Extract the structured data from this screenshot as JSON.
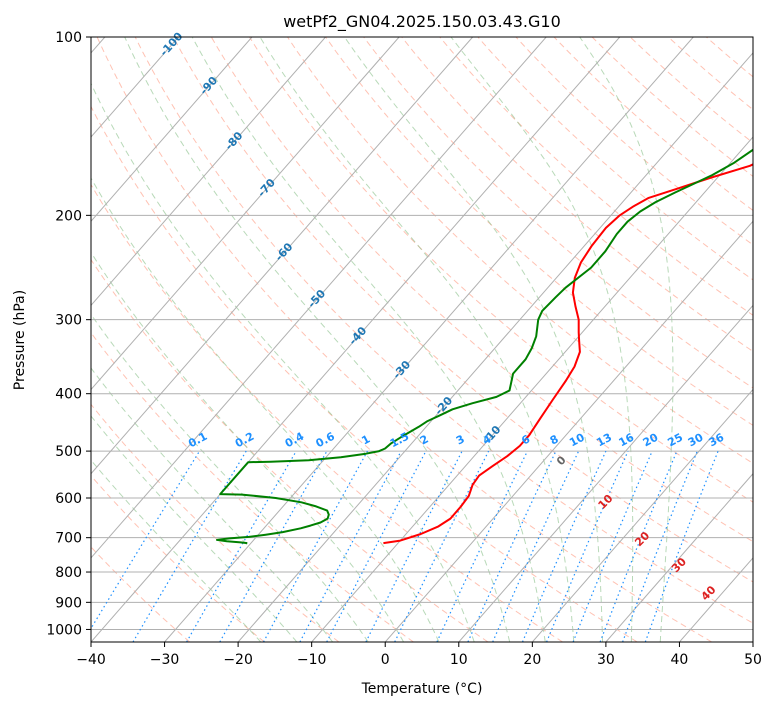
{
  "chart_data": {
    "type": "line",
    "title": "wetPf2_GN04.2025.150.03.43.G10",
    "xlabel": "Temperature (°C)",
    "ylabel": "Pressure (hPa)",
    "xlim": [
      -40,
      50
    ],
    "ylim": [
      1050,
      100
    ],
    "y_scale": "log",
    "grid": true,
    "x_ticks": [
      -40,
      -30,
      -20,
      -10,
      0,
      10,
      20,
      30,
      40,
      50
    ],
    "y_ticks": [
      100,
      200,
      300,
      400,
      500,
      600,
      700,
      800,
      900,
      1000
    ],
    "colors": {
      "temperature": "#ff0000",
      "dewpoint": "#008000",
      "isotherm_label": "#1f77b4",
      "mixing_ratio": "#1e90ff",
      "dry_adiabat": "#ff9980",
      "moist_adiabat": "#88c088",
      "grid": "#b0b0b0"
    },
    "series": [
      {
        "kind": "temperature",
        "points": [
          [
            -12,
            715
          ],
          [
            -10,
            708
          ],
          [
            -8,
            690
          ],
          [
            -6.5,
            670
          ],
          [
            -5.8,
            650
          ],
          [
            -5.8,
            620
          ],
          [
            -6,
            595
          ],
          [
            -6.8,
            570
          ],
          [
            -7,
            550
          ],
          [
            -6.3,
            530
          ],
          [
            -5.5,
            510
          ],
          [
            -5,
            490
          ],
          [
            -5,
            470
          ],
          [
            -5.5,
            440
          ],
          [
            -6,
            410
          ],
          [
            -6.5,
            380
          ],
          [
            -7,
            360
          ],
          [
            -8,
            340
          ],
          [
            -9.5,
            325
          ],
          [
            -10.5,
            315
          ],
          [
            -12,
            300
          ],
          [
            -14,
            285
          ],
          [
            -16,
            270
          ],
          [
            -17.5,
            255
          ],
          [
            -18.5,
            240
          ],
          [
            -19,
            225
          ],
          [
            -19.2,
            210
          ],
          [
            -18.8,
            200
          ],
          [
            -18,
            193
          ],
          [
            -17,
            187
          ],
          [
            -14,
            180
          ],
          [
            -11,
            173
          ],
          [
            -7,
            165
          ],
          [
            -5,
            158
          ],
          [
            -4,
            153
          ],
          [
            -3,
            148
          ],
          [
            -1,
            143
          ],
          [
            0,
            138
          ],
          [
            2.5,
            130
          ],
          [
            4,
            123
          ],
          [
            5,
            117
          ],
          [
            6,
            110
          ],
          [
            7,
            104
          ],
          [
            7.8,
            100
          ]
        ]
      },
      {
        "kind": "dewpoint",
        "points": [
          [
            -30.5,
            715
          ],
          [
            -31.5,
            713
          ],
          [
            -33.5,
            710
          ],
          [
            -35,
            706
          ],
          [
            -33.5,
            702
          ],
          [
            -31,
            698
          ],
          [
            -29,
            692
          ],
          [
            -27,
            685
          ],
          [
            -25,
            675
          ],
          [
            -24,
            668
          ],
          [
            -23,
            660
          ],
          [
            -22.5,
            650
          ],
          [
            -22.8,
            640
          ],
          [
            -23.5,
            630
          ],
          [
            -25.5,
            620
          ],
          [
            -28,
            610
          ],
          [
            -32,
            600
          ],
          [
            -37,
            592
          ],
          [
            -40,
            591
          ],
          [
            -40,
            522
          ],
          [
            -37,
            521
          ],
          [
            -32,
            518
          ],
          [
            -28,
            512
          ],
          [
            -25,
            505
          ],
          [
            -23.5,
            500
          ],
          [
            -23,
            495
          ],
          [
            -22.8,
            485
          ],
          [
            -22,
            470
          ],
          [
            -21,
            455
          ],
          [
            -20.5,
            445
          ],
          [
            -19.5,
            435
          ],
          [
            -18.5,
            425
          ],
          [
            -16.5,
            415
          ],
          [
            -14,
            405
          ],
          [
            -13,
            395
          ],
          [
            -14.5,
            370
          ],
          [
            -14.5,
            350
          ],
          [
            -15,
            335
          ],
          [
            -15.8,
            320
          ],
          [
            -17.5,
            300
          ],
          [
            -18,
            290
          ],
          [
            -17.8,
            275
          ],
          [
            -17.6,
            265
          ],
          [
            -16.5,
            245
          ],
          [
            -16.5,
            230
          ],
          [
            -17,
            215
          ],
          [
            -17,
            205
          ],
          [
            -16.5,
            197
          ],
          [
            -15.5,
            190
          ],
          [
            -14,
            183
          ],
          [
            -12.5,
            177
          ],
          [
            -11,
            171
          ],
          [
            -9.5,
            163
          ],
          [
            -8.5,
            155
          ],
          [
            -7.5,
            148
          ],
          [
            -7,
            142
          ],
          [
            -6,
            135
          ],
          [
            -4.5,
            128
          ],
          [
            -3,
            120
          ],
          [
            -1.5,
            113
          ],
          [
            0,
            107
          ],
          [
            1,
            102
          ],
          [
            1.6,
            100
          ]
        ]
      }
    ],
    "isotherm_labels": [
      "-100",
      "-90",
      "-80",
      "-70",
      "-60",
      "-50",
      "-40",
      "-30",
      "-20",
      "-10"
    ],
    "mixing_ratio_labels": [
      "0.1",
      "0.2",
      "0.4",
      "0.6",
      "1",
      "1.5",
      "2",
      "3",
      "4",
      "6",
      "8",
      "10",
      "13",
      "16",
      "20",
      "25",
      "30",
      "36"
    ],
    "mixing_ratio_values": [
      0.1,
      0.2,
      0.4,
      0.6,
      1,
      1.5,
      2,
      3,
      4,
      6,
      8,
      10,
      13,
      16,
      20,
      25,
      30,
      36
    ],
    "red_labels": [
      "0",
      "10",
      "20",
      "30",
      "40"
    ]
  }
}
